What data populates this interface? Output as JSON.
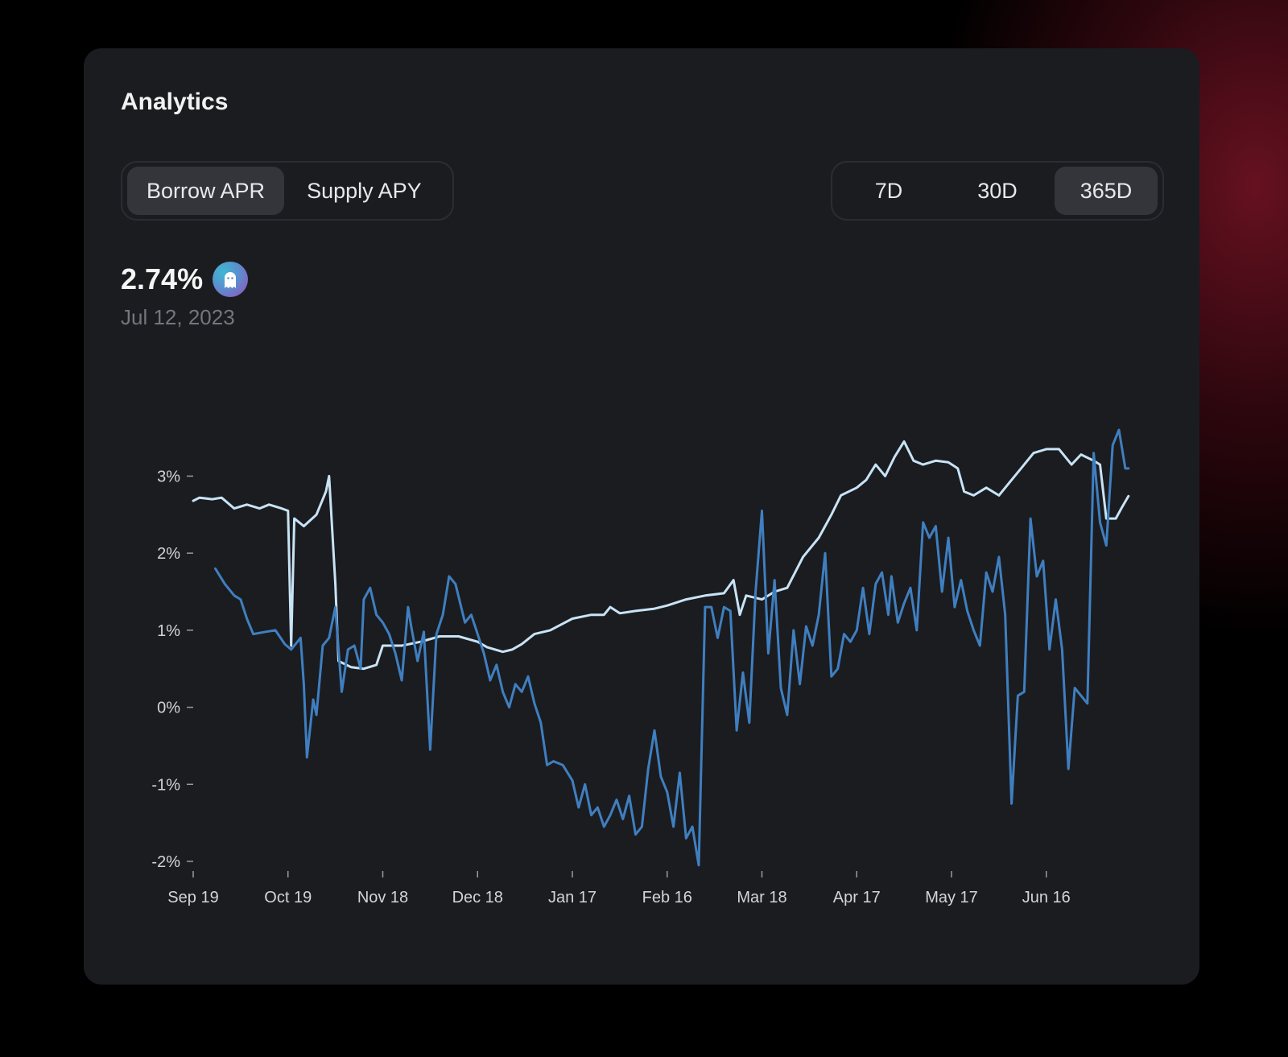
{
  "card": {
    "title": "Analytics"
  },
  "metric_tabs": [
    {
      "label": "Borrow APR",
      "active": true
    },
    {
      "label": "Supply APY",
      "active": false
    }
  ],
  "range_tabs": [
    {
      "label": "7D",
      "active": false
    },
    {
      "label": "30D",
      "active": false
    },
    {
      "label": "365D",
      "active": true
    }
  ],
  "summary": {
    "value": "2.74%",
    "date": "Jul 12, 2023",
    "token_icon": "ghost-icon"
  },
  "colors": {
    "background": "#000000",
    "card": "#1b1c20",
    "series_light": "#c8e3f5",
    "series_dark": "#3f7fc0"
  },
  "chart_data": {
    "type": "line",
    "ylim": [
      -2,
      3.6
    ],
    "yticks": [
      3,
      2,
      1,
      0,
      -1,
      -2
    ],
    "ytick_labels": [
      "3%",
      "2%",
      "1%",
      "0%",
      "-1%",
      "-2%"
    ],
    "xticks": [
      "2022-09-19",
      "2022-10-19",
      "2022-11-18",
      "2022-12-18",
      "2023-01-17",
      "2023-02-16",
      "2023-03-18",
      "2023-04-17",
      "2023-05-17",
      "2023-06-16"
    ],
    "xtick_labels": [
      "Sep 19",
      "Oct 19",
      "Nov 18",
      "Dec 18",
      "Jan 17",
      "Feb 16",
      "Mar 18",
      "Apr 17",
      "May 17",
      "Jun 16"
    ],
    "xlim": [
      "2022-09-19",
      "2023-07-12"
    ],
    "series": [
      {
        "color": "#c8e3f5",
        "points": [
          [
            "2022-09-19",
            2.68
          ],
          [
            "2022-09-21",
            2.72
          ],
          [
            "2022-09-25",
            2.7
          ],
          [
            "2022-09-28",
            2.72
          ],
          [
            "2022-10-02",
            2.58
          ],
          [
            "2022-10-06",
            2.63
          ],
          [
            "2022-10-10",
            2.58
          ],
          [
            "2022-10-13",
            2.63
          ],
          [
            "2022-10-17",
            2.58
          ],
          [
            "2022-10-19",
            2.55
          ],
          [
            "2022-10-20",
            0.8
          ],
          [
            "2022-10-21",
            2.45
          ],
          [
            "2022-10-24",
            2.35
          ],
          [
            "2022-10-28",
            2.5
          ],
          [
            "2022-10-31",
            2.8
          ],
          [
            "2022-11-01",
            3.0
          ],
          [
            "2022-11-02",
            2.3
          ],
          [
            "2022-11-03",
            1.6
          ],
          [
            "2022-11-04",
            0.6
          ],
          [
            "2022-11-08",
            0.52
          ],
          [
            "2022-11-12",
            0.5
          ],
          [
            "2022-11-16",
            0.55
          ],
          [
            "2022-11-18",
            0.8
          ],
          [
            "2022-11-24",
            0.8
          ],
          [
            "2022-11-30",
            0.85
          ],
          [
            "2022-12-06",
            0.92
          ],
          [
            "2022-12-12",
            0.92
          ],
          [
            "2022-12-18",
            0.85
          ],
          [
            "2022-12-21",
            0.78
          ],
          [
            "2022-12-26",
            0.72
          ],
          [
            "2022-12-29",
            0.75
          ],
          [
            "2023-01-01",
            0.82
          ],
          [
            "2023-01-05",
            0.95
          ],
          [
            "2023-01-10",
            1.0
          ],
          [
            "2023-01-17",
            1.15
          ],
          [
            "2023-01-23",
            1.2
          ],
          [
            "2023-01-27",
            1.2
          ],
          [
            "2023-01-29",
            1.3
          ],
          [
            "2023-02-01",
            1.22
          ],
          [
            "2023-02-06",
            1.25
          ],
          [
            "2023-02-12",
            1.28
          ],
          [
            "2023-02-16",
            1.32
          ],
          [
            "2023-02-22",
            1.4
          ],
          [
            "2023-02-28",
            1.45
          ],
          [
            "2023-03-06",
            1.48
          ],
          [
            "2023-03-09",
            1.65
          ],
          [
            "2023-03-11",
            1.2
          ],
          [
            "2023-03-13",
            1.45
          ],
          [
            "2023-03-18",
            1.4
          ],
          [
            "2023-03-22",
            1.5
          ],
          [
            "2023-03-26",
            1.55
          ],
          [
            "2023-03-31",
            1.95
          ],
          [
            "2023-04-05",
            2.2
          ],
          [
            "2023-04-09",
            2.5
          ],
          [
            "2023-04-12",
            2.75
          ],
          [
            "2023-04-17",
            2.85
          ],
          [
            "2023-04-20",
            2.95
          ],
          [
            "2023-04-23",
            3.15
          ],
          [
            "2023-04-26",
            3.0
          ],
          [
            "2023-04-29",
            3.25
          ],
          [
            "2023-05-02",
            3.45
          ],
          [
            "2023-05-05",
            3.2
          ],
          [
            "2023-05-08",
            3.15
          ],
          [
            "2023-05-12",
            3.2
          ],
          [
            "2023-05-16",
            3.18
          ],
          [
            "2023-05-19",
            3.1
          ],
          [
            "2023-05-21",
            2.8
          ],
          [
            "2023-05-24",
            2.75
          ],
          [
            "2023-05-28",
            2.85
          ],
          [
            "2023-06-01",
            2.75
          ],
          [
            "2023-06-05",
            2.95
          ],
          [
            "2023-06-09",
            3.15
          ],
          [
            "2023-06-12",
            3.3
          ],
          [
            "2023-06-16",
            3.35
          ],
          [
            "2023-06-20",
            3.35
          ],
          [
            "2023-06-24",
            3.15
          ],
          [
            "2023-06-27",
            3.28
          ],
          [
            "2023-07-01",
            3.2
          ],
          [
            "2023-07-03",
            3.15
          ],
          [
            "2023-07-05",
            2.45
          ],
          [
            "2023-07-08",
            2.45
          ],
          [
            "2023-07-10",
            2.6
          ],
          [
            "2023-07-12",
            2.74
          ]
        ]
      },
      {
        "color": "#3f7fc0",
        "points": [
          [
            "2022-09-26",
            1.8
          ],
          [
            "2022-09-29",
            1.6
          ],
          [
            "2022-10-02",
            1.45
          ],
          [
            "2022-10-04",
            1.4
          ],
          [
            "2022-10-06",
            1.15
          ],
          [
            "2022-10-08",
            0.95
          ],
          [
            "2022-10-12",
            0.98
          ],
          [
            "2022-10-15",
            1.0
          ],
          [
            "2022-10-18",
            0.82
          ],
          [
            "2022-10-20",
            0.75
          ],
          [
            "2022-10-22",
            0.85
          ],
          [
            "2022-10-23",
            0.9
          ],
          [
            "2022-10-24",
            0.3
          ],
          [
            "2022-10-25",
            -0.65
          ],
          [
            "2022-10-27",
            0.1
          ],
          [
            "2022-10-28",
            -0.1
          ],
          [
            "2022-10-30",
            0.8
          ],
          [
            "2022-11-01",
            0.9
          ],
          [
            "2022-11-03",
            1.3
          ],
          [
            "2022-11-05",
            0.2
          ],
          [
            "2022-11-07",
            0.75
          ],
          [
            "2022-11-09",
            0.8
          ],
          [
            "2022-11-11",
            0.5
          ],
          [
            "2022-11-12",
            1.4
          ],
          [
            "2022-11-14",
            1.55
          ],
          [
            "2022-11-16",
            1.2
          ],
          [
            "2022-11-18",
            1.1
          ],
          [
            "2022-11-20",
            0.95
          ],
          [
            "2022-11-22",
            0.7
          ],
          [
            "2022-11-24",
            0.35
          ],
          [
            "2022-11-26",
            1.3
          ],
          [
            "2022-11-27",
            1.05
          ],
          [
            "2022-11-29",
            0.6
          ],
          [
            "2022-12-01",
            0.98
          ],
          [
            "2022-12-03",
            -0.55
          ],
          [
            "2022-12-05",
            0.95
          ],
          [
            "2022-12-07",
            1.2
          ],
          [
            "2022-12-09",
            1.7
          ],
          [
            "2022-12-11",
            1.6
          ],
          [
            "2022-12-14",
            1.1
          ],
          [
            "2022-12-16",
            1.2
          ],
          [
            "2022-12-18",
            0.95
          ],
          [
            "2022-12-20",
            0.7
          ],
          [
            "2022-12-22",
            0.35
          ],
          [
            "2022-12-24",
            0.55
          ],
          [
            "2022-12-26",
            0.2
          ],
          [
            "2022-12-28",
            0.0
          ],
          [
            "2022-12-30",
            0.3
          ],
          [
            "2023-01-01",
            0.2
          ],
          [
            "2023-01-03",
            0.4
          ],
          [
            "2023-01-05",
            0.05
          ],
          [
            "2023-01-07",
            -0.2
          ],
          [
            "2023-01-09",
            -0.75
          ],
          [
            "2023-01-11",
            -0.7
          ],
          [
            "2023-01-14",
            -0.75
          ],
          [
            "2023-01-17",
            -0.95
          ],
          [
            "2023-01-19",
            -1.3
          ],
          [
            "2023-01-21",
            -1.0
          ],
          [
            "2023-01-23",
            -1.4
          ],
          [
            "2023-01-25",
            -1.3
          ],
          [
            "2023-01-27",
            -1.55
          ],
          [
            "2023-01-29",
            -1.4
          ],
          [
            "2023-01-31",
            -1.2
          ],
          [
            "2023-02-02",
            -1.45
          ],
          [
            "2023-02-04",
            -1.15
          ],
          [
            "2023-02-06",
            -1.65
          ],
          [
            "2023-02-08",
            -1.55
          ],
          [
            "2023-02-10",
            -0.8
          ],
          [
            "2023-02-12",
            -0.3
          ],
          [
            "2023-02-14",
            -0.9
          ],
          [
            "2023-02-16",
            -1.1
          ],
          [
            "2023-02-18",
            -1.55
          ],
          [
            "2023-02-20",
            -0.85
          ],
          [
            "2023-02-22",
            -1.7
          ],
          [
            "2023-02-24",
            -1.55
          ],
          [
            "2023-02-26",
            -2.05
          ],
          [
            "2023-02-28",
            1.3
          ],
          [
            "2023-03-02",
            1.3
          ],
          [
            "2023-03-04",
            0.9
          ],
          [
            "2023-03-06",
            1.3
          ],
          [
            "2023-03-08",
            1.25
          ],
          [
            "2023-03-10",
            -0.3
          ],
          [
            "2023-03-12",
            0.45
          ],
          [
            "2023-03-14",
            -0.2
          ],
          [
            "2023-03-16",
            1.5
          ],
          [
            "2023-03-18",
            2.55
          ],
          [
            "2023-03-20",
            0.7
          ],
          [
            "2023-03-22",
            1.65
          ],
          [
            "2023-03-24",
            0.25
          ],
          [
            "2023-03-26",
            -0.1
          ],
          [
            "2023-03-28",
            1.0
          ],
          [
            "2023-03-30",
            0.3
          ],
          [
            "2023-04-01",
            1.05
          ],
          [
            "2023-04-03",
            0.8
          ],
          [
            "2023-04-05",
            1.2
          ],
          [
            "2023-04-07",
            2.0
          ],
          [
            "2023-04-09",
            0.4
          ],
          [
            "2023-04-11",
            0.5
          ],
          [
            "2023-04-13",
            0.95
          ],
          [
            "2023-04-15",
            0.85
          ],
          [
            "2023-04-17",
            1.0
          ],
          [
            "2023-04-19",
            1.55
          ],
          [
            "2023-04-21",
            0.95
          ],
          [
            "2023-04-23",
            1.6
          ],
          [
            "2023-04-25",
            1.75
          ],
          [
            "2023-04-27",
            1.2
          ],
          [
            "2023-04-28",
            1.7
          ],
          [
            "2023-04-30",
            1.1
          ],
          [
            "2023-05-02",
            1.35
          ],
          [
            "2023-05-04",
            1.55
          ],
          [
            "2023-05-06",
            1.0
          ],
          [
            "2023-05-08",
            2.4
          ],
          [
            "2023-05-10",
            2.2
          ],
          [
            "2023-05-12",
            2.35
          ],
          [
            "2023-05-14",
            1.5
          ],
          [
            "2023-05-16",
            2.2
          ],
          [
            "2023-05-18",
            1.3
          ],
          [
            "2023-05-20",
            1.65
          ],
          [
            "2023-05-22",
            1.25
          ],
          [
            "2023-05-24",
            1.0
          ],
          [
            "2023-05-26",
            0.8
          ],
          [
            "2023-05-28",
            1.75
          ],
          [
            "2023-05-30",
            1.5
          ],
          [
            "2023-06-01",
            1.95
          ],
          [
            "2023-06-03",
            1.2
          ],
          [
            "2023-06-05",
            -1.25
          ],
          [
            "2023-06-07",
            0.15
          ],
          [
            "2023-06-09",
            0.2
          ],
          [
            "2023-06-11",
            2.45
          ],
          [
            "2023-06-13",
            1.7
          ],
          [
            "2023-06-15",
            1.9
          ],
          [
            "2023-06-17",
            0.75
          ],
          [
            "2023-06-19",
            1.4
          ],
          [
            "2023-06-21",
            0.75
          ],
          [
            "2023-06-23",
            -0.8
          ],
          [
            "2023-06-25",
            0.25
          ],
          [
            "2023-06-27",
            0.15
          ],
          [
            "2023-06-29",
            0.05
          ],
          [
            "2023-07-01",
            3.3
          ],
          [
            "2023-07-03",
            2.4
          ],
          [
            "2023-07-05",
            2.1
          ],
          [
            "2023-07-07",
            3.4
          ],
          [
            "2023-07-09",
            3.6
          ],
          [
            "2023-07-11",
            3.1
          ],
          [
            "2023-07-12",
            3.1
          ]
        ]
      }
    ]
  }
}
